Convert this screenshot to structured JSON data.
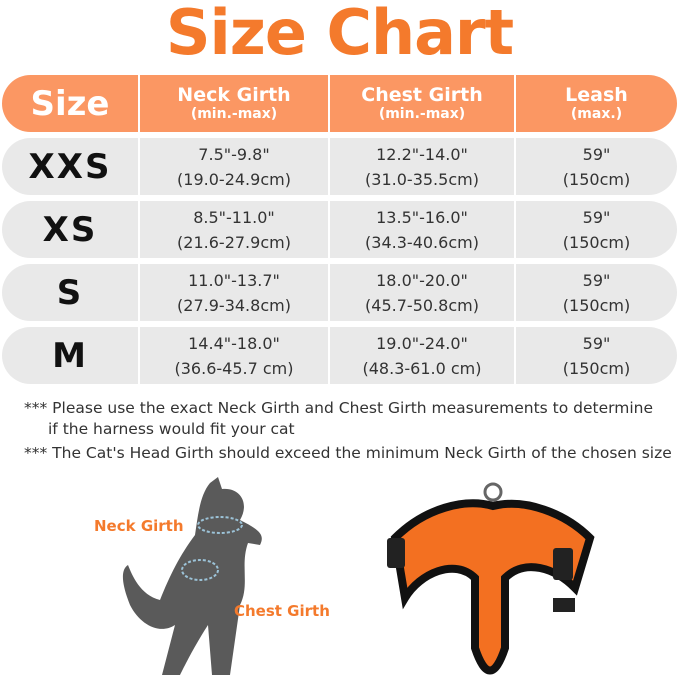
{
  "title": "Size Chart",
  "header": {
    "size": "Size",
    "neck": {
      "label": "Neck Girth",
      "sub": "(min.-max)"
    },
    "chest": {
      "label": "Chest Girth",
      "sub": "(min.-max)"
    },
    "leash": {
      "label": "Leash",
      "sub": "(max.)"
    }
  },
  "rows": [
    {
      "size": "XXS",
      "neck_in": "7.5\"-9.8\"",
      "neck_cm": "(19.0-24.9cm)",
      "chest_in": "12.2\"-14.0\"",
      "chest_cm": "(31.0-35.5cm)",
      "leash_in": "59\"",
      "leash_cm": "(150cm)"
    },
    {
      "size": "XS",
      "neck_in": "8.5\"-11.0\"",
      "neck_cm": "(21.6-27.9cm)",
      "chest_in": "13.5\"-16.0\"",
      "chest_cm": "(34.3-40.6cm)",
      "leash_in": "59\"",
      "leash_cm": "(150cm)"
    },
    {
      "size": "S",
      "neck_in": "11.0\"-13.7\"",
      "neck_cm": "(27.9-34.8cm)",
      "chest_in": "18.0\"-20.0\"",
      "chest_cm": "(45.7-50.8cm)",
      "leash_in": "59\"",
      "leash_cm": "(150cm)"
    },
    {
      "size": "M",
      "neck_in": "14.4\"-18.0\"",
      "neck_cm": "(36.6-45.7 cm)",
      "chest_in": "19.0\"-24.0\"",
      "chest_cm": "(48.3-61.0 cm)",
      "leash_in": "59\"",
      "leash_cm": "(150cm)"
    }
  ],
  "notes": [
    "*** Please use the exact Neck Girth and Chest Girth measurements to determine",
    "if the harness would fit your cat",
    "*** The Cat's Head Girth should exceed the minimum Neck Girth of the chosen size"
  ],
  "diagram": {
    "neck_label": "Neck Girth",
    "chest_label": "Chest Girth"
  },
  "colors": {
    "accent": "#f47a2c",
    "header": "#fb9763",
    "row": "#e9e9e9"
  }
}
